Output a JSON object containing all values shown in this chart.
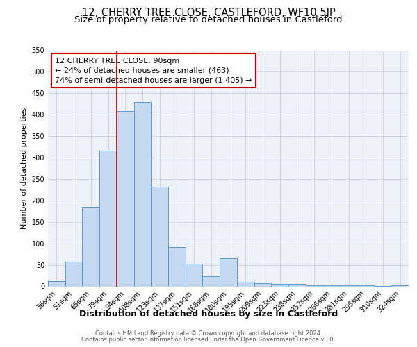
{
  "title": "12, CHERRY TREE CLOSE, CASTLEFORD, WF10 5JP",
  "subtitle": "Size of property relative to detached houses in Castleford",
  "xlabel": "Distribution of detached houses by size in Castleford",
  "ylabel": "Number of detached properties",
  "categories": [
    "36sqm",
    "51sqm",
    "65sqm",
    "79sqm",
    "94sqm",
    "108sqm",
    "123sqm",
    "137sqm",
    "151sqm",
    "166sqm",
    "180sqm",
    "195sqm",
    "209sqm",
    "223sqm",
    "238sqm",
    "252sqm",
    "266sqm",
    "281sqm",
    "295sqm",
    "310sqm",
    "324sqm"
  ],
  "values": [
    12,
    58,
    186,
    316,
    408,
    430,
    232,
    92,
    52,
    23,
    65,
    10,
    8,
    5,
    5,
    3,
    3,
    3,
    2,
    1,
    3
  ],
  "bar_color": "#c5d9f1",
  "bar_edge_color": "#5b9bd5",
  "vline_x_index": 4,
  "vline_color": "#c00000",
  "annotation_line1": "12 CHERRY TREE CLOSE: 90sqm",
  "annotation_line2": "← 24% of detached houses are smaller (463)",
  "annotation_line3": "74% of semi-detached houses are larger (1,405) →",
  "annotation_box_edge_color": "#c00000",
  "annotation_box_facecolor": "white",
  "ylim": [
    0,
    550
  ],
  "yticks": [
    0,
    50,
    100,
    150,
    200,
    250,
    300,
    350,
    400,
    450,
    500,
    550
  ],
  "grid_color": "#c8d4e0",
  "background_color": "#eef2f8",
  "footer_line1": "Contains HM Land Registry data © Crown copyright and database right 2024.",
  "footer_line2": "Contains public sector information licensed under the Open Government Licence v3.0.",
  "title_fontsize": 10.5,
  "subtitle_fontsize": 9.5,
  "xlabel_fontsize": 9,
  "ylabel_fontsize": 8,
  "tick_fontsize": 7,
  "annotation_fontsize": 8,
  "footer_fontsize": 6
}
